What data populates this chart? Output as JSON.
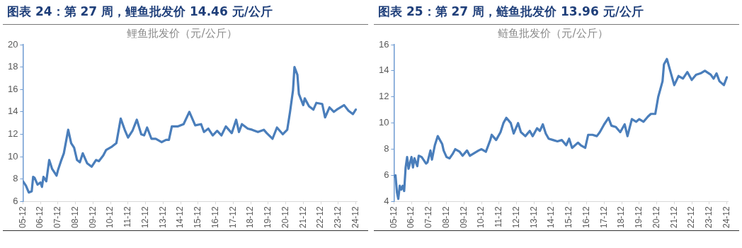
{
  "chart_data": [
    {
      "type": "line",
      "title": "图表 24：第 27 周，鲤鱼批发价 14.46 元/公斤",
      "subtitle": "鲤鱼批发价（元/公斤）",
      "color": "#4a7ebb",
      "marker": "none",
      "x": [
        "2005-12",
        "2006-02",
        "2006-04",
        "2006-06",
        "2006-07",
        "2006-08",
        "2006-10",
        "2006-12",
        "2007-01",
        "2007-02",
        "2007-04",
        "2007-06",
        "2007-08",
        "2007-11",
        "2007-12",
        "2008-02",
        "2008-04",
        "2008-07",
        "2008-09",
        "2008-11",
        "2009-01",
        "2009-03",
        "2009-05",
        "2009-08",
        "2009-11",
        "2010-02",
        "2010-04",
        "2010-07",
        "2010-09",
        "2011-01",
        "2011-04",
        "2011-07",
        "2011-10",
        "2011-12",
        "2012-03",
        "2012-06",
        "2012-09",
        "2012-11",
        "2013-01",
        "2013-04",
        "2013-07",
        "2013-11",
        "2014-02",
        "2014-04",
        "2014-06",
        "2014-10",
        "2015-02",
        "2015-06",
        "2015-10",
        "2016-02",
        "2016-04",
        "2016-07",
        "2016-10",
        "2017-01",
        "2017-04",
        "2017-07",
        "2017-11",
        "2018-02",
        "2018-04",
        "2018-06",
        "2018-10",
        "2019-01",
        "2019-05",
        "2019-09",
        "2019-11",
        "2020-03",
        "2020-06",
        "2020-10",
        "2021-01",
        "2021-03",
        "2021-05",
        "2021-06",
        "2021-08",
        "2021-09",
        "2021-12",
        "2022-01",
        "2022-04",
        "2022-07",
        "2022-09",
        "2023-01",
        "2023-03",
        "2023-06",
        "2023-09",
        "2023-11",
        "2024-04",
        "2024-07",
        "2024-10",
        "2024-12"
      ],
      "values": [
        7.8,
        7.4,
        6.8,
        6.9,
        8.2,
        8.1,
        7.5,
        7.7,
        7.3,
        8.2,
        7.8,
        9.7,
        8.9,
        8.3,
        8.8,
        9.6,
        10.3,
        12.4,
        11.2,
        10.8,
        9.7,
        9.5,
        10.3,
        9.4,
        9.1,
        9.7,
        9.6,
        10.1,
        10.6,
        10.9,
        11.2,
        13.4,
        12.3,
        11.7,
        12.3,
        13.3,
        12.0,
        11.9,
        12.6,
        11.6,
        11.6,
        11.3,
        11.5,
        11.5,
        12.7,
        12.7,
        12.9,
        14.0,
        12.8,
        12.9,
        12.2,
        12.5,
        11.9,
        12.3,
        11.9,
        12.7,
        12.1,
        13.3,
        12.2,
        12.9,
        12.5,
        12.4,
        12.2,
        12.4,
        12.1,
        11.6,
        12.6,
        12.0,
        12.4,
        14.0,
        15.9,
        18.0,
        17.3,
        15.6,
        14.6,
        15.2,
        14.5,
        14.2,
        14.8,
        14.7,
        13.5,
        14.4,
        14.0,
        14.2,
        14.6,
        14.1,
        13.8,
        14.2
      ],
      "xlim": [
        "2005-12",
        "2025-01"
      ],
      "xticks": [
        {
          "value": "2005-12",
          "label": "05-12"
        },
        {
          "value": "2006-12",
          "label": "06-12"
        },
        {
          "value": "2007-12",
          "label": "07-12"
        },
        {
          "value": "2008-12",
          "label": "08-12"
        },
        {
          "value": "2009-12",
          "label": "09-12"
        },
        {
          "value": "2010-12",
          "label": "10-12"
        },
        {
          "value": "2011-12",
          "label": "11-12"
        },
        {
          "value": "2012-12",
          "label": "12-12"
        },
        {
          "value": "2013-12",
          "label": "13-12"
        },
        {
          "value": "2014-12",
          "label": "14-12"
        },
        {
          "value": "2015-12",
          "label": "15-12"
        },
        {
          "value": "2016-12",
          "label": "16-12"
        },
        {
          "value": "2017-12",
          "label": "17-12"
        },
        {
          "value": "2018-12",
          "label": "18-12"
        },
        {
          "value": "2019-12",
          "label": "19-12"
        },
        {
          "value": "2020-12",
          "label": "20-12"
        },
        {
          "value": "2021-12",
          "label": "21-12"
        },
        {
          "value": "2022-12",
          "label": "22-12"
        },
        {
          "value": "2023-12",
          "label": "23-12"
        },
        {
          "value": "2024-12",
          "label": "24-12"
        }
      ],
      "ylim": [
        6,
        20
      ],
      "yticks": [
        6,
        8,
        10,
        12,
        14,
        16,
        18,
        20
      ]
    },
    {
      "type": "line",
      "title": "图表 25：第 27 周，鲢鱼批发价 13.96 元/公斤",
      "subtitle": "鲢鱼批发价（元/公斤）",
      "color": "#4a7ebb",
      "marker": "none",
      "x": [
        "2005-12",
        "2006-01",
        "2006-02",
        "2006-03",
        "2006-04",
        "2006-05",
        "2006-06",
        "2006-07",
        "2006-08",
        "2006-09",
        "2006-10",
        "2006-12",
        "2007-01",
        "2007-02",
        "2007-04",
        "2007-05",
        "2007-07",
        "2007-10",
        "2007-11",
        "2008-01",
        "2008-02",
        "2008-04",
        "2008-06",
        "2008-09",
        "2008-10",
        "2008-12",
        "2009-02",
        "2009-04",
        "2009-06",
        "2009-09",
        "2009-11",
        "2010-02",
        "2010-04",
        "2010-07",
        "2010-10",
        "2010-12",
        "2011-03",
        "2011-06",
        "2011-07",
        "2011-10",
        "2012-01",
        "2012-03",
        "2012-05",
        "2012-08",
        "2012-10",
        "2013-01",
        "2013-03",
        "2013-06",
        "2013-09",
        "2013-11",
        "2014-02",
        "2014-04",
        "2014-06",
        "2014-08",
        "2014-10",
        "2015-01",
        "2015-04",
        "2015-07",
        "2015-10",
        "2015-12",
        "2016-02",
        "2016-06",
        "2016-08",
        "2016-11",
        "2017-01",
        "2017-04",
        "2017-07",
        "2017-09",
        "2017-12",
        "2018-03",
        "2018-05",
        "2018-08",
        "2018-11",
        "2019-02",
        "2019-04",
        "2019-07",
        "2019-10",
        "2019-12",
        "2020-03",
        "2020-06",
        "2020-08",
        "2020-11",
        "2021-01",
        "2021-04",
        "2021-05",
        "2021-07",
        "2021-10",
        "2021-12",
        "2022-03",
        "2022-06",
        "2022-09",
        "2022-12",
        "2023-03",
        "2023-06",
        "2023-09",
        "2024-01",
        "2024-03",
        "2024-05",
        "2024-07",
        "2024-10",
        "2024-12"
      ],
      "values": [
        5.9,
        6.0,
        4.7,
        4.2,
        5.2,
        4.9,
        5.2,
        4.8,
        6.6,
        7.4,
        6.5,
        7.4,
        6.6,
        7.3,
        6.7,
        7.5,
        7.4,
        6.9,
        7.0,
        7.9,
        7.2,
        8.3,
        9.0,
        8.4,
        7.9,
        7.4,
        7.3,
        7.6,
        8.0,
        7.8,
        7.5,
        7.9,
        7.5,
        7.7,
        7.9,
        8.0,
        7.8,
        8.7,
        9.1,
        8.7,
        9.3,
        10.0,
        10.4,
        10.0,
        9.2,
        10.0,
        9.3,
        9.0,
        9.4,
        9.0,
        9.6,
        9.4,
        9.9,
        9.2,
        8.8,
        8.7,
        8.6,
        8.7,
        8.3,
        8.8,
        8.1,
        8.5,
        8.3,
        8.1,
        9.1,
        9.1,
        9.0,
        9.3,
        9.9,
        10.4,
        9.8,
        9.7,
        9.3,
        9.9,
        9.0,
        10.3,
        10.1,
        10.3,
        10.1,
        10.5,
        10.7,
        10.7,
        12.0,
        13.2,
        14.5,
        14.9,
        13.7,
        12.9,
        13.6,
        13.4,
        13.9,
        13.3,
        13.7,
        13.8,
        14.0,
        13.7,
        13.4,
        13.8,
        13.2,
        12.9,
        13.5
      ],
      "xlim": [
        "2005-12",
        "2025-01"
      ],
      "xticks": [
        {
          "value": "2005-12",
          "label": "05-12"
        },
        {
          "value": "2006-12",
          "label": "06-12"
        },
        {
          "value": "2007-12",
          "label": "07-12"
        },
        {
          "value": "2008-12",
          "label": "08-12"
        },
        {
          "value": "2009-12",
          "label": "09-12"
        },
        {
          "value": "2010-12",
          "label": "10-12"
        },
        {
          "value": "2011-12",
          "label": "11-12"
        },
        {
          "value": "2012-12",
          "label": "12-12"
        },
        {
          "value": "2013-12",
          "label": "13-12"
        },
        {
          "value": "2014-12",
          "label": "14-12"
        },
        {
          "value": "2015-12",
          "label": "15-12"
        },
        {
          "value": "2016-12",
          "label": "16-12"
        },
        {
          "value": "2017-12",
          "label": "17-12"
        },
        {
          "value": "2018-12",
          "label": "18-12"
        },
        {
          "value": "2019-12",
          "label": "19-12"
        },
        {
          "value": "2020-12",
          "label": "20-12"
        },
        {
          "value": "2021-12",
          "label": "21-12"
        },
        {
          "value": "2022-12",
          "label": "22-12"
        },
        {
          "value": "2023-12",
          "label": "23-12"
        },
        {
          "value": "2024-12",
          "label": "24-12"
        }
      ],
      "ylim": [
        4,
        16
      ],
      "yticks": [
        4,
        6,
        8,
        10,
        12,
        14,
        16
      ]
    }
  ]
}
